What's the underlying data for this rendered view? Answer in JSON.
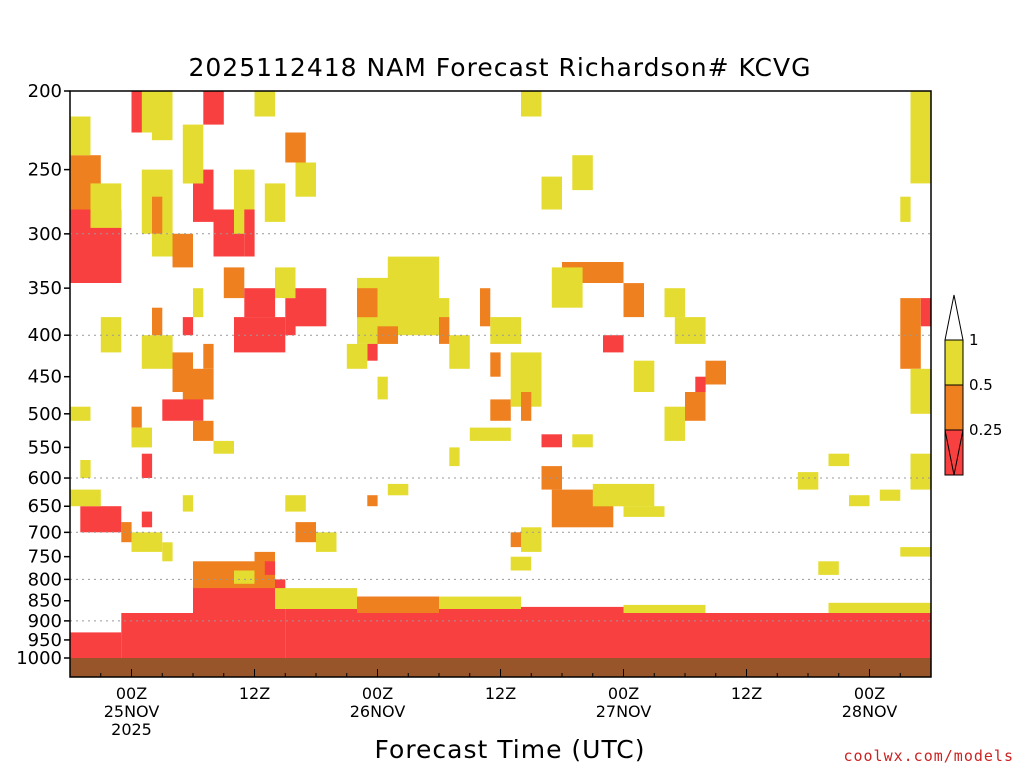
{
  "chart_data": {
    "type": "heatmap",
    "title": "2025112418 NAM Forecast Richardson# KCVG",
    "xlabel": "Forecast Time (UTC)",
    "credit": "coolwx.com/models",
    "y_axis": {
      "label": "",
      "scale": "log-pressure, inverted",
      "range": [
        1000,
        200
      ],
      "ticks": [
        "200",
        "250",
        "300",
        "350",
        "400",
        "450",
        "500",
        "550",
        "600",
        "650",
        "700",
        "750",
        "800",
        "850",
        "900",
        "950",
        "1000"
      ],
      "gridlines_dotted_at": [
        300,
        400,
        600,
        700,
        800,
        900
      ]
    },
    "x_axis": {
      "range_hours_from_init": [
        0,
        84
      ],
      "tick_labels": [
        {
          "lines": [
            "00Z",
            "25NOV",
            "2025"
          ]
        },
        {
          "lines": [
            "12Z"
          ]
        },
        {
          "lines": [
            "00Z",
            "26NOV"
          ]
        },
        {
          "lines": [
            "12Z"
          ]
        },
        {
          "lines": [
            "00Z",
            "27NOV"
          ]
        },
        {
          "lines": [
            "12Z"
          ]
        },
        {
          "lines": [
            "00Z",
            "28NOV"
          ]
        }
      ]
    },
    "colorbar": {
      "labels": [
        "1",
        "0.5",
        "0.25"
      ],
      "bins": [
        {
          "range": "0.5-1",
          "color": "#e4dc30"
        },
        {
          "range": "0.25-0.5",
          "color": "#ee8020"
        },
        {
          "range": "<0.25",
          "color": "#f94040"
        }
      ],
      "over_color": "#ffffff",
      "under_color": "#f94040"
    },
    "ground_color": "#98552a",
    "surface_pressure": 1000,
    "regions": [
      {
        "c": "r",
        "t": [
          5,
          12
        ],
        "p": [
          880,
          1000
        ]
      },
      {
        "c": "r",
        "t": [
          12,
          21
        ],
        "p": [
          800,
          1000
        ]
      },
      {
        "c": "r",
        "t": [
          21,
          36
        ],
        "p": [
          840,
          1000
        ]
      },
      {
        "c": "r",
        "t": [
          36,
          58
        ],
        "p": [
          865,
          1000
        ]
      },
      {
        "c": "r",
        "t": [
          58,
          84
        ],
        "p": [
          880,
          1000
        ]
      },
      {
        "c": "r",
        "t": [
          0,
          5
        ],
        "p": [
          930,
          1000
        ]
      },
      {
        "c": "o",
        "t": [
          12,
          20
        ],
        "p": [
          760,
          820
        ]
      },
      {
        "c": "y",
        "t": [
          20,
          28
        ],
        "p": [
          820,
          870
        ]
      },
      {
        "c": "o",
        "t": [
          28,
          36
        ],
        "p": [
          840,
          880
        ]
      },
      {
        "c": "y",
        "t": [
          36,
          44
        ],
        "p": [
          840,
          870
        ]
      },
      {
        "c": "y",
        "t": [
          54,
          62
        ],
        "p": [
          860,
          880
        ]
      },
      {
        "c": "y",
        "t": [
          74,
          84
        ],
        "p": [
          855,
          880
        ]
      },
      {
        "c": "r",
        "t": [
          0,
          5
        ],
        "p": [
          280,
          345
        ]
      },
      {
        "c": "o",
        "t": [
          0,
          3
        ],
        "p": [
          240,
          280
        ]
      },
      {
        "c": "y",
        "t": [
          0,
          2
        ],
        "p": [
          215,
          240
        ]
      },
      {
        "c": "y",
        "t": [
          2,
          5
        ],
        "p": [
          260,
          295
        ]
      },
      {
        "c": "y",
        "t": [
          6,
          8
        ],
        "p": [
          200,
          225
        ]
      },
      {
        "c": "r",
        "t": [
          6,
          7
        ],
        "p": [
          200,
          225
        ]
      },
      {
        "c": "y",
        "t": [
          8,
          10
        ],
        "p": [
          200,
          230
        ]
      },
      {
        "c": "y",
        "t": [
          7,
          10
        ],
        "p": [
          250,
          300
        ]
      },
      {
        "c": "o",
        "t": [
          8,
          9
        ],
        "p": [
          270,
          300
        ]
      },
      {
        "c": "y",
        "t": [
          8,
          11
        ],
        "p": [
          300,
          320
        ]
      },
      {
        "c": "o",
        "t": [
          10,
          12
        ],
        "p": [
          300,
          330
        ]
      },
      {
        "c": "r",
        "t": [
          12,
          14
        ],
        "p": [
          250,
          290
        ]
      },
      {
        "c": "r",
        "t": [
          13,
          15
        ],
        "p": [
          200,
          220
        ]
      },
      {
        "c": "y",
        "t": [
          11,
          13
        ],
        "p": [
          220,
          260
        ]
      },
      {
        "c": "r",
        "t": [
          14,
          17
        ],
        "p": [
          280,
          320
        ]
      },
      {
        "c": "o",
        "t": [
          15,
          17
        ],
        "p": [
          330,
          360
        ]
      },
      {
        "c": "y",
        "t": [
          16,
          18
        ],
        "p": [
          250,
          300
        ]
      },
      {
        "c": "r",
        "t": [
          17,
          18
        ],
        "p": [
          280,
          320
        ]
      },
      {
        "c": "y",
        "t": [
          18,
          20
        ],
        "p": [
          200,
          215
        ]
      },
      {
        "c": "y",
        "t": [
          19,
          21
        ],
        "p": [
          260,
          290
        ]
      },
      {
        "c": "o",
        "t": [
          21,
          23
        ],
        "p": [
          225,
          245
        ]
      },
      {
        "c": "y",
        "t": [
          22,
          24
        ],
        "p": [
          245,
          270
        ]
      },
      {
        "c": "r",
        "t": [
          16,
          21
        ],
        "p": [
          380,
          420
        ]
      },
      {
        "c": "r",
        "t": [
          17,
          20
        ],
        "p": [
          350,
          380
        ]
      },
      {
        "c": "r",
        "t": [
          21,
          22
        ],
        "p": [
          360,
          400
        ]
      },
      {
        "c": "r",
        "t": [
          22,
          25
        ],
        "p": [
          350,
          390
        ]
      },
      {
        "c": "y",
        "t": [
          20,
          22
        ],
        "p": [
          330,
          360
        ]
      },
      {
        "c": "y",
        "t": [
          3,
          5
        ],
        "p": [
          380,
          420
        ]
      },
      {
        "c": "y",
        "t": [
          7,
          10
        ],
        "p": [
          400,
          440
        ]
      },
      {
        "c": "o",
        "t": [
          8,
          9
        ],
        "p": [
          370,
          400
        ]
      },
      {
        "c": "o",
        "t": [
          10,
          12
        ],
        "p": [
          420,
          470
        ]
      },
      {
        "c": "o",
        "t": [
          11,
          14
        ],
        "p": [
          440,
          480
        ]
      },
      {
        "c": "y",
        "t": [
          12,
          13
        ],
        "p": [
          350,
          380
        ]
      },
      {
        "c": "r",
        "t": [
          11,
          12
        ],
        "p": [
          380,
          400
        ]
      },
      {
        "c": "o",
        "t": [
          13,
          14
        ],
        "p": [
          410,
          440
        ]
      },
      {
        "c": "r",
        "t": [
          9,
          13
        ],
        "p": [
          480,
          510
        ]
      },
      {
        "c": "o",
        "t": [
          12,
          14
        ],
        "p": [
          510,
          540
        ]
      },
      {
        "c": "y",
        "t": [
          14,
          16
        ],
        "p": [
          540,
          560
        ]
      },
      {
        "c": "o",
        "t": [
          6,
          7
        ],
        "p": [
          490,
          520
        ]
      },
      {
        "c": "y",
        "t": [
          6,
          8
        ],
        "p": [
          520,
          550
        ]
      },
      {
        "c": "r",
        "t": [
          7,
          8
        ],
        "p": [
          560,
          600
        ]
      },
      {
        "c": "y",
        "t": [
          0,
          2
        ],
        "p": [
          490,
          510
        ]
      },
      {
        "c": "y",
        "t": [
          1,
          2
        ],
        "p": [
          570,
          600
        ]
      },
      {
        "c": "r",
        "t": [
          1,
          5
        ],
        "p": [
          650,
          700
        ]
      },
      {
        "c": "o",
        "t": [
          5,
          6
        ],
        "p": [
          680,
          720
        ]
      },
      {
        "c": "y",
        "t": [
          6,
          9
        ],
        "p": [
          700,
          740
        ]
      },
      {
        "c": "r",
        "t": [
          7,
          8
        ],
        "p": [
          660,
          690
        ]
      },
      {
        "c": "y",
        "t": [
          9,
          10
        ],
        "p": [
          720,
          760
        ]
      },
      {
        "c": "y",
        "t": [
          0,
          3
        ],
        "p": [
          620,
          650
        ]
      },
      {
        "c": "y",
        "t": [
          11,
          12
        ],
        "p": [
          630,
          660
        ]
      },
      {
        "c": "y",
        "t": [
          21,
          23
        ],
        "p": [
          630,
          660
        ]
      },
      {
        "c": "o",
        "t": [
          22,
          24
        ],
        "p": [
          680,
          720
        ]
      },
      {
        "c": "y",
        "t": [
          24,
          26
        ],
        "p": [
          700,
          740
        ]
      },
      {
        "c": "o",
        "t": [
          18,
          20
        ],
        "p": [
          740,
          780
        ]
      },
      {
        "c": "r",
        "t": [
          19,
          20
        ],
        "p": [
          760,
          790
        ]
      },
      {
        "c": "y",
        "t": [
          16,
          18
        ],
        "p": [
          780,
          810
        ]
      },
      {
        "c": "y",
        "t": [
          28,
          32
        ],
        "p": [
          340,
          410
        ]
      },
      {
        "c": "y",
        "t": [
          31,
          36
        ],
        "p": [
          320,
          400
        ]
      },
      {
        "c": "y",
        "t": [
          34,
          37
        ],
        "p": [
          360,
          400
        ]
      },
      {
        "c": "o",
        "t": [
          28,
          30
        ],
        "p": [
          350,
          380
        ]
      },
      {
        "c": "o",
        "t": [
          30,
          32
        ],
        "p": [
          390,
          410
        ]
      },
      {
        "c": "r",
        "t": [
          29,
          30
        ],
        "p": [
          410,
          430
        ]
      },
      {
        "c": "y",
        "t": [
          27,
          29
        ],
        "p": [
          410,
          440
        ]
      },
      {
        "c": "o",
        "t": [
          36,
          37
        ],
        "p": [
          380,
          410
        ]
      },
      {
        "c": "y",
        "t": [
          37,
          39
        ],
        "p": [
          400,
          440
        ]
      },
      {
        "c": "y",
        "t": [
          30,
          31
        ],
        "p": [
          450,
          480
        ]
      },
      {
        "c": "o",
        "t": [
          40,
          41
        ],
        "p": [
          350,
          390
        ]
      },
      {
        "c": "y",
        "t": [
          41,
          44
        ],
        "p": [
          380,
          410
        ]
      },
      {
        "c": "o",
        "t": [
          41,
          42
        ],
        "p": [
          420,
          450
        ]
      },
      {
        "c": "o",
        "t": [
          41,
          43
        ],
        "p": [
          480,
          510
        ]
      },
      {
        "c": "y",
        "t": [
          43,
          46
        ],
        "p": [
          420,
          490
        ]
      },
      {
        "c": "o",
        "t": [
          44,
          45
        ],
        "p": [
          470,
          510
        ]
      },
      {
        "c": "y",
        "t": [
          39,
          43
        ],
        "p": [
          520,
          540
        ]
      },
      {
        "c": "y",
        "t": [
          37,
          38
        ],
        "p": [
          550,
          580
        ]
      },
      {
        "c": "y",
        "t": [
          31,
          33
        ],
        "p": [
          610,
          630
        ]
      },
      {
        "c": "o",
        "t": [
          29,
          30
        ],
        "p": [
          630,
          650
        ]
      },
      {
        "c": "y",
        "t": [
          44,
          46
        ],
        "p": [
          200,
          215
        ]
      },
      {
        "c": "y",
        "t": [
          46,
          48
        ],
        "p": [
          255,
          280
        ]
      },
      {
        "c": "y",
        "t": [
          49,
          51
        ],
        "p": [
          240,
          265
        ]
      },
      {
        "c": "o",
        "t": [
          48,
          54
        ],
        "p": [
          325,
          345
        ]
      },
      {
        "c": "y",
        "t": [
          47,
          50
        ],
        "p": [
          330,
          370
        ]
      },
      {
        "c": "o",
        "t": [
          54,
          56
        ],
        "p": [
          345,
          380
        ]
      },
      {
        "c": "r",
        "t": [
          52,
          54
        ],
        "p": [
          400,
          420
        ]
      },
      {
        "c": "y",
        "t": [
          55,
          57
        ],
        "p": [
          430,
          470
        ]
      },
      {
        "c": "y",
        "t": [
          58,
          60
        ],
        "p": [
          350,
          380
        ]
      },
      {
        "c": "y",
        "t": [
          59,
          62
        ],
        "p": [
          380,
          410
        ]
      },
      {
        "c": "o",
        "t": [
          60,
          62
        ],
        "p": [
          470,
          510
        ]
      },
      {
        "c": "r",
        "t": [
          61,
          62
        ],
        "p": [
          450,
          470
        ]
      },
      {
        "c": "o",
        "t": [
          62,
          64
        ],
        "p": [
          430,
          460
        ]
      },
      {
        "c": "y",
        "t": [
          58,
          60
        ],
        "p": [
          490,
          540
        ]
      },
      {
        "c": "r",
        "t": [
          46,
          48
        ],
        "p": [
          530,
          550
        ]
      },
      {
        "c": "y",
        "t": [
          49,
          51
        ],
        "p": [
          530,
          550
        ]
      },
      {
        "c": "o",
        "t": [
          46,
          48
        ],
        "p": [
          580,
          620
        ]
      },
      {
        "c": "o",
        "t": [
          47,
          53
        ],
        "p": [
          620,
          690
        ]
      },
      {
        "c": "y",
        "t": [
          51,
          57
        ],
        "p": [
          610,
          650
        ]
      },
      {
        "c": "y",
        "t": [
          54,
          58
        ],
        "p": [
          650,
          670
        ]
      },
      {
        "c": "y",
        "t": [
          44,
          46
        ],
        "p": [
          690,
          740
        ]
      },
      {
        "c": "o",
        "t": [
          43,
          44
        ],
        "p": [
          700,
          730
        ]
      },
      {
        "c": "y",
        "t": [
          43,
          45
        ],
        "p": [
          750,
          780
        ]
      },
      {
        "c": "y",
        "t": [
          71,
          73
        ],
        "p": [
          590,
          620
        ]
      },
      {
        "c": "y",
        "t": [
          74,
          76
        ],
        "p": [
          560,
          580
        ]
      },
      {
        "c": "y",
        "t": [
          76,
          78
        ],
        "p": [
          630,
          650
        ]
      },
      {
        "c": "y",
        "t": [
          73,
          75
        ],
        "p": [
          760,
          790
        ]
      },
      {
        "c": "y",
        "t": [
          79,
          81
        ],
        "p": [
          620,
          640
        ]
      },
      {
        "c": "y",
        "t": [
          81,
          84
        ],
        "p": [
          730,
          750
        ]
      },
      {
        "c": "y",
        "t": [
          82,
          84
        ],
        "p": [
          200,
          260
        ]
      },
      {
        "c": "y",
        "t": [
          81,
          82
        ],
        "p": [
          270,
          290
        ]
      },
      {
        "c": "o",
        "t": [
          81,
          83
        ],
        "p": [
          360,
          440
        ]
      },
      {
        "c": "r",
        "t": [
          83,
          84
        ],
        "p": [
          360,
          390
        ]
      },
      {
        "c": "y",
        "t": [
          82,
          84
        ],
        "p": [
          440,
          500
        ]
      },
      {
        "c": "y",
        "t": [
          82,
          84
        ],
        "p": [
          560,
          620
        ]
      }
    ]
  }
}
